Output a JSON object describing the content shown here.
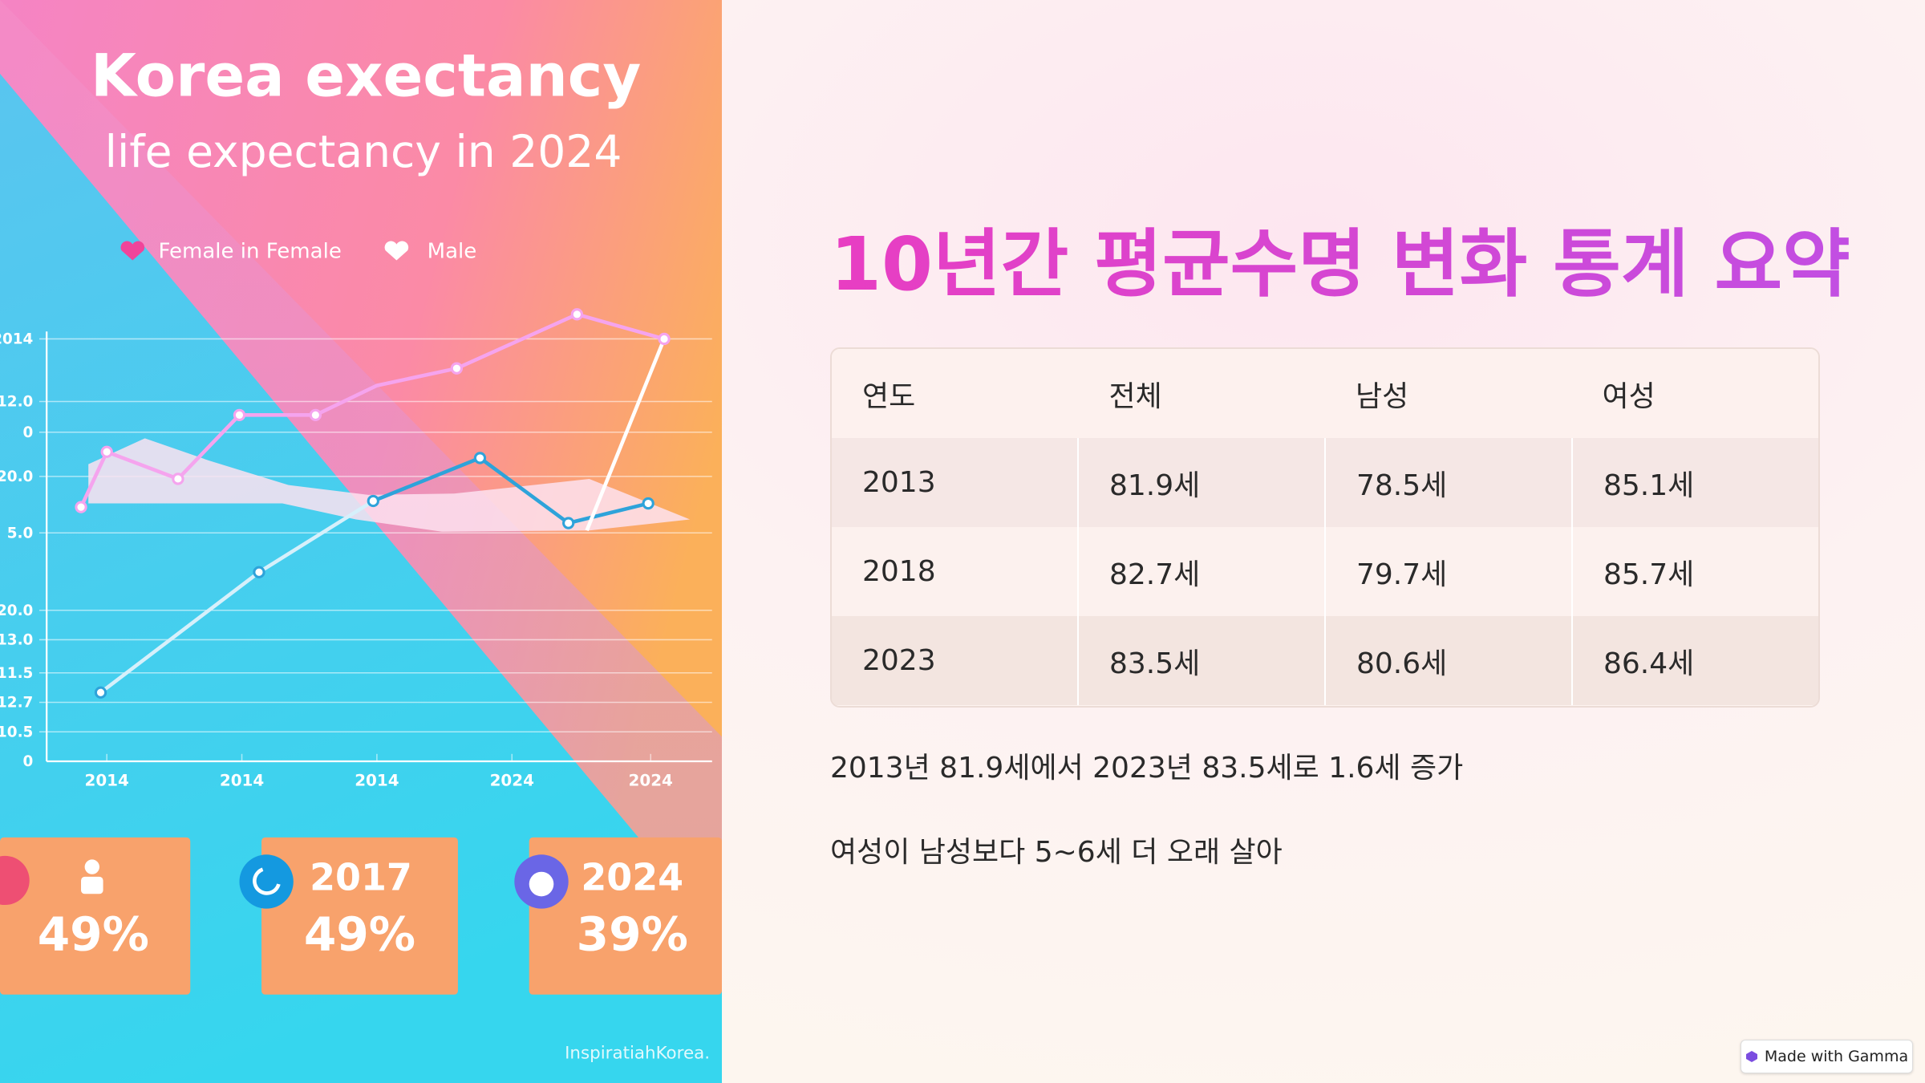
{
  "image": {
    "title": "Korea exectancy",
    "subtitle": "life expectancy in 2024",
    "legend": [
      "Female in Female",
      "Male"
    ],
    "y_labels": [
      "2014",
      "12.0",
      "0",
      "20.0",
      "5.0",
      "20.0",
      "13.0",
      "11.5",
      "12.7",
      "10.5",
      "0"
    ],
    "x_labels": [
      "2014",
      "2014",
      "2014",
      "2024",
      "2024"
    ],
    "cards": [
      {
        "value": "49%"
      },
      {
        "year": "2017",
        "value": "49%"
      },
      {
        "year": "2024",
        "value": "39%"
      }
    ],
    "credit": "InspiratiahKorea."
  },
  "slide": {
    "title": "10년간 평균수명 변화 통계 요약",
    "table": {
      "header": [
        "연도",
        "전체",
        "남성",
        "여성"
      ],
      "rows": [
        [
          "2013",
          "81.9세",
          "78.5세",
          "85.1세"
        ],
        [
          "2018",
          "82.7세",
          "79.7세",
          "85.7세"
        ],
        [
          "2023",
          "83.5세",
          "80.6세",
          "86.4세"
        ]
      ]
    },
    "bullets": [
      "2013년 81.9세에서 2023년 83.5세로 1.6세 증가",
      "여성이 남성보다 5~6세 더 오래 살아"
    ],
    "badge": "Made with Gamma"
  }
}
